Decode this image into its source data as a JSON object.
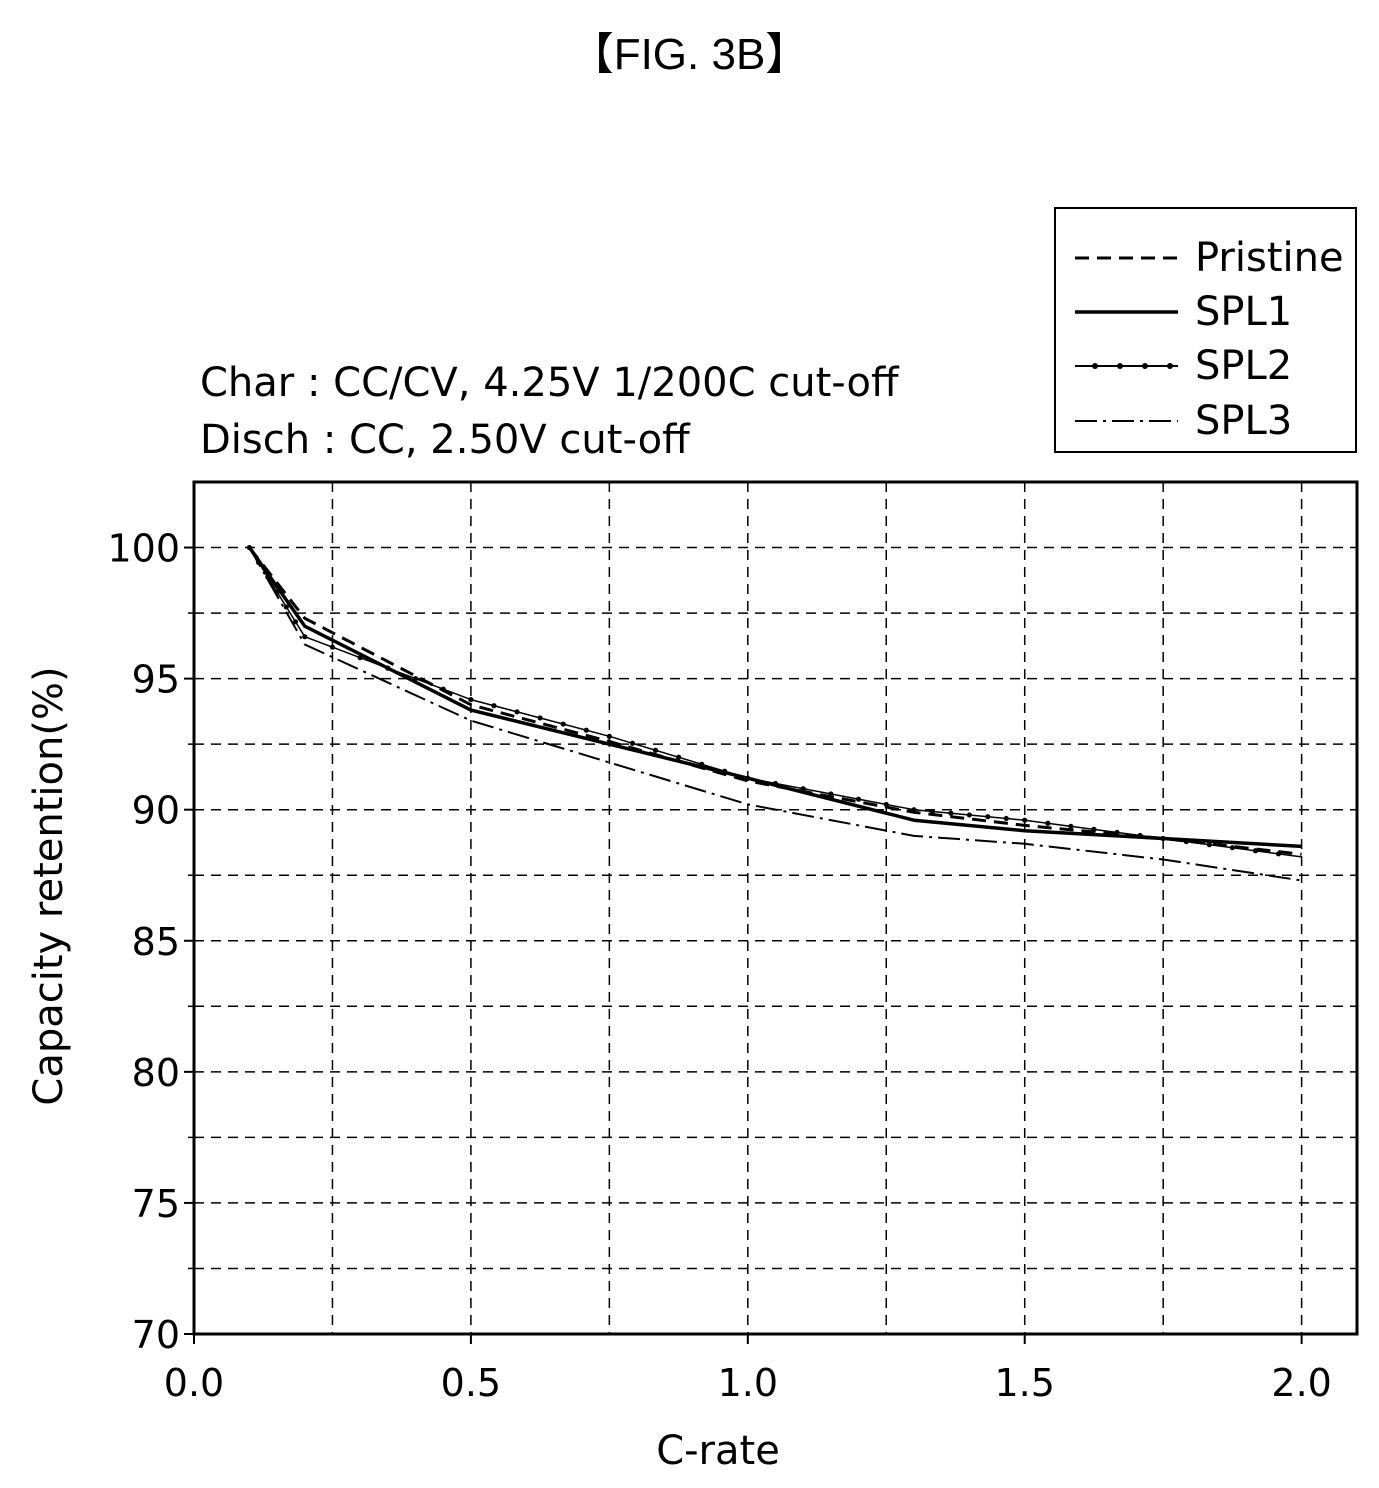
{
  "figure_label": "【FIG. 3B】",
  "chart_data": {
    "type": "line",
    "conditions": [
      "Char : CC/CV, 4.25V 1/200C cut-off",
      "Disch : CC, 2.50V cut-off"
    ],
    "xlabel": "C-rate",
    "ylabel": "Capacity retention(%)",
    "xlim": [
      0.0,
      2.1
    ],
    "ylim": [
      70,
      102.5
    ],
    "xticks": [
      0.0,
      0.5,
      1.0,
      1.5,
      2.0
    ],
    "xtick_labels": [
      "0.0",
      "0.5",
      "1.0",
      "1.5",
      "2.0"
    ],
    "yticks": [
      70,
      75,
      80,
      85,
      90,
      95,
      100
    ],
    "ytick_labels": [
      "70",
      "75",
      "80",
      "85",
      "90",
      "95",
      "100"
    ],
    "grid": true,
    "legend_position": "top-right",
    "series": [
      {
        "name": "Pristine",
        "style": "dashed",
        "x": [
          0.1,
          0.2,
          0.5,
          0.75,
          1.0,
          1.3,
          1.5,
          1.75,
          2.0
        ],
        "y": [
          100,
          97.3,
          94.0,
          92.6,
          91.1,
          89.9,
          89.4,
          88.9,
          88.3
        ]
      },
      {
        "name": "SPL1",
        "style": "solid",
        "x": [
          0.1,
          0.2,
          0.5,
          0.75,
          1.0,
          1.3,
          1.5,
          1.75,
          2.0
        ],
        "y": [
          100,
          97.0,
          93.8,
          92.5,
          91.2,
          89.6,
          89.2,
          88.9,
          88.6
        ]
      },
      {
        "name": "SPL2",
        "style": "dotted-markers",
        "x": [
          0.1,
          0.2,
          0.5,
          0.75,
          1.0,
          1.3,
          1.5,
          1.75,
          2.0
        ],
        "y": [
          100,
          96.6,
          94.2,
          92.8,
          91.2,
          90.0,
          89.6,
          88.9,
          88.2
        ]
      },
      {
        "name": "SPL3",
        "style": "dash-dot",
        "x": [
          0.1,
          0.2,
          0.5,
          0.75,
          1.0,
          1.3,
          1.5,
          1.75,
          2.0
        ],
        "y": [
          100,
          96.3,
          93.4,
          91.8,
          90.2,
          89.0,
          88.7,
          88.1,
          87.3
        ]
      }
    ]
  }
}
